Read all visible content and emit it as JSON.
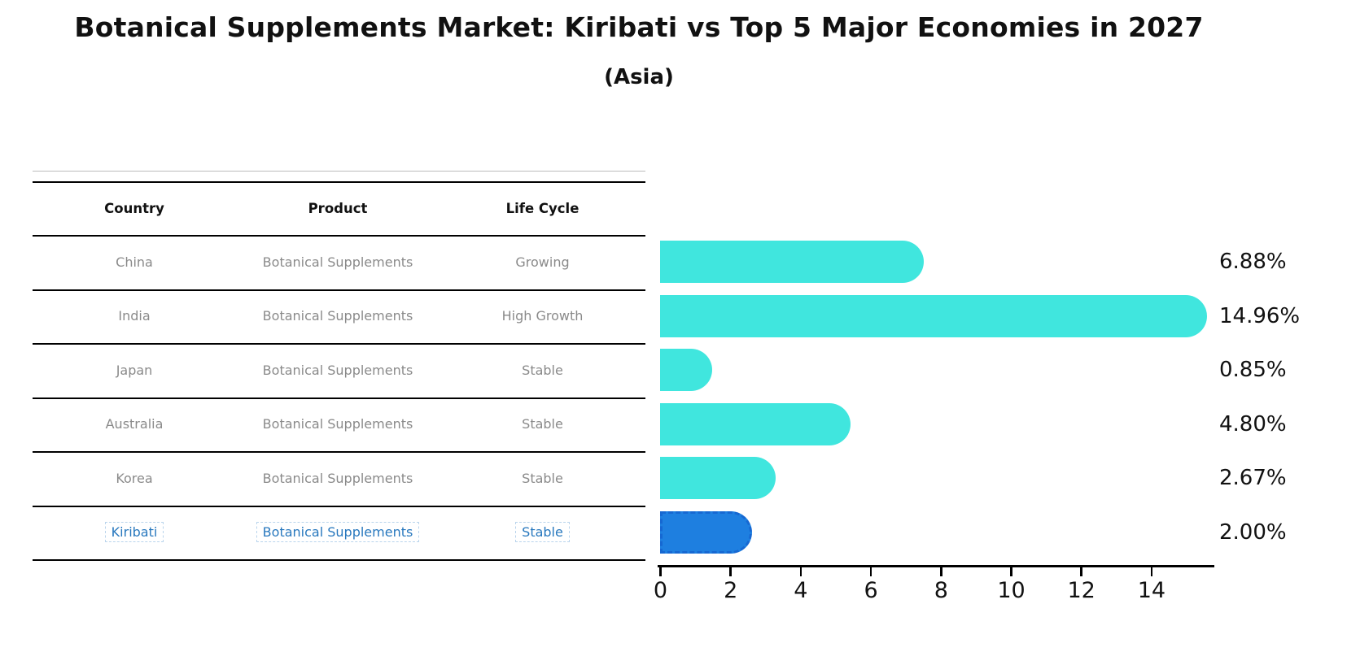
{
  "header": {
    "title": "Botanical Supplements Market: Kiribati vs Top 5 Major Economies in 2027",
    "subtitle": "(Asia)"
  },
  "table": {
    "columns": [
      "Country",
      "Product",
      "Life Cycle"
    ],
    "rows": [
      {
        "country": "China",
        "product": "Botanical Supplements",
        "life_cycle": "Growing",
        "highlight": false
      },
      {
        "country": "India",
        "product": "Botanical Supplements",
        "life_cycle": "High Growth",
        "highlight": false
      },
      {
        "country": "Japan",
        "product": "Botanical Supplements",
        "life_cycle": "Stable",
        "highlight": false
      },
      {
        "country": "Australia",
        "product": "Botanical Supplements",
        "life_cycle": "Stable",
        "highlight": false
      },
      {
        "country": "Korea",
        "product": "Botanical Supplements",
        "life_cycle": "Stable",
        "highlight": false
      },
      {
        "country": "Kiribati",
        "product": "Botanical Supplements",
        "life_cycle": "Stable",
        "highlight": true
      }
    ]
  },
  "chart_data": {
    "type": "bar",
    "orientation": "horizontal",
    "title": "Botanical Supplements Market: Kiribati vs Top 5 Major Economies in 2027",
    "subtitle": "(Asia)",
    "categories": [
      "China",
      "India",
      "Japan",
      "Australia",
      "Korea",
      "Kiribati"
    ],
    "values": [
      6.88,
      14.96,
      0.85,
      4.8,
      2.67,
      2.0
    ],
    "value_labels": [
      "6.88%",
      "14.96%",
      "0.85%",
      "4.80%",
      "2.67%",
      "2.00%"
    ],
    "xticks": [
      0,
      2,
      4,
      6,
      8,
      10,
      12,
      14
    ],
    "xlim": [
      0,
      15.8
    ],
    "grid": false,
    "legend": false,
    "bar_color": "#40E6DE",
    "highlight_bar_color": "#1E7FE0",
    "highlight_index": 5,
    "highlight_text_color": "#2878BE",
    "body_text_color": "#8a8a8a"
  }
}
